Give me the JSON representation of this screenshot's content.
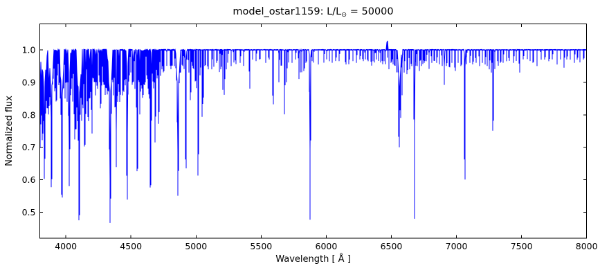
{
  "figure": {
    "title_prefix": "model_ostar1159: L/L",
    "title_sub": "⊙",
    "title_suffix": " = 50000",
    "xlabel": "Wavelength [ Å ]",
    "ylabel": "Normalized flux"
  },
  "chart_data": {
    "type": "line",
    "title": "model_ostar1159: L/L⊙ = 50000",
    "xlabel": "Wavelength [ Å ]",
    "ylabel": "Normalized flux",
    "xlim": [
      3800,
      8000
    ],
    "ylim": [
      0.42,
      1.08
    ],
    "xticks": [
      4000,
      4500,
      5000,
      5500,
      6000,
      6500,
      7000,
      7500,
      8000
    ],
    "yticks": [
      0.5,
      0.6,
      0.7,
      0.8,
      0.9,
      1.0
    ],
    "grid": false,
    "legend": false,
    "line_color": "#0000ff",
    "frame_color": "#000000",
    "continuum_flux": 1.0,
    "noise_amplitude_blue": 0.006,
    "noise_amplitude_red": 0.0035,
    "profile": "parabolic",
    "absorption_lines": [
      [
        3798,
        0.66,
        6
      ],
      [
        3798,
        0.92,
        16
      ],
      [
        3806,
        0.77,
        3.5
      ],
      [
        3813,
        0.8,
        3.5
      ],
      [
        3820,
        0.72,
        4.5
      ],
      [
        3820,
        0.93,
        11
      ],
      [
        3829,
        0.78,
        3.5
      ],
      [
        3835,
        0.6,
        5.5
      ],
      [
        3835,
        0.89,
        18
      ],
      [
        3843,
        0.8,
        3
      ],
      [
        3850,
        0.84,
        3
      ],
      [
        3856,
        0.82,
        3
      ],
      [
        3863,
        0.82,
        3
      ],
      [
        3868,
        0.8,
        3
      ],
      [
        3872,
        0.85,
        3
      ],
      [
        3880,
        0.83,
        3
      ],
      [
        3889,
        0.575,
        5.5
      ],
      [
        3889,
        0.88,
        20
      ],
      [
        3900,
        0.9,
        3
      ],
      [
        3913,
        0.87,
        3
      ],
      [
        3920,
        0.88,
        3
      ],
      [
        3927,
        0.84,
        3.5
      ],
      [
        3935,
        0.92,
        2.5
      ],
      [
        3945,
        0.89,
        3
      ],
      [
        3955,
        0.85,
        3
      ],
      [
        3964,
        0.8,
        3.5
      ],
      [
        3970,
        0.545,
        5.5
      ],
      [
        3970,
        0.87,
        20
      ],
      [
        3983,
        0.88,
        3
      ],
      [
        3995,
        0.85,
        3
      ],
      [
        4003,
        0.9,
        2.5
      ],
      [
        4009,
        0.84,
        3
      ],
      [
        4017,
        0.9,
        2.5
      ],
      [
        4026,
        0.58,
        5
      ],
      [
        4026,
        0.91,
        13
      ],
      [
        4035,
        0.86,
        3
      ],
      [
        4042,
        0.88,
        3
      ],
      [
        4051,
        0.84,
        3
      ],
      [
        4062,
        0.8,
        3
      ],
      [
        4069,
        0.72,
        3
      ],
      [
        4076,
        0.75,
        3
      ],
      [
        4083,
        0.82,
        3
      ],
      [
        4089,
        0.78,
        3
      ],
      [
        4097,
        0.72,
        3.5
      ],
      [
        4102,
        0.475,
        6
      ],
      [
        4102,
        0.86,
        22
      ],
      [
        4110,
        0.8,
        3
      ],
      [
        4116,
        0.85,
        3
      ],
      [
        4121,
        0.78,
        3
      ],
      [
        4129,
        0.83,
        3
      ],
      [
        4133,
        0.82,
        3
      ],
      [
        4145,
        0.7,
        3.5
      ],
      [
        4153,
        0.8,
        3
      ],
      [
        4163,
        0.84,
        3
      ],
      [
        4172,
        0.78,
        3
      ],
      [
        4180,
        0.85,
        3
      ],
      [
        4186,
        0.85,
        3
      ],
      [
        4190,
        0.87,
        2.5
      ],
      [
        4200,
        0.74,
        4
      ],
      [
        4209,
        0.91,
        2.5
      ],
      [
        4215,
        0.9,
        2.5
      ],
      [
        4222,
        0.9,
        2.5
      ],
      [
        4228,
        0.86,
        3
      ],
      [
        4236,
        0.89,
        3
      ],
      [
        4242,
        0.88,
        3
      ],
      [
        4254,
        0.92,
        2.5
      ],
      [
        4261,
        0.9,
        2.5
      ],
      [
        4267,
        0.82,
        3
      ],
      [
        4276,
        0.89,
        3
      ],
      [
        4285,
        0.9,
        3
      ],
      [
        4294,
        0.89,
        3
      ],
      [
        4303,
        0.86,
        3
      ],
      [
        4310,
        0.88,
        3
      ],
      [
        4317,
        0.86,
        3
      ],
      [
        4326,
        0.87,
        3
      ],
      [
        4340,
        0.465,
        6
      ],
      [
        4340,
        0.86,
        22
      ],
      [
        4349,
        0.8,
        3
      ],
      [
        4359,
        0.9,
        2.5
      ],
      [
        4367,
        0.86,
        3
      ],
      [
        4379,
        0.82,
        3
      ],
      [
        4387,
        0.635,
        4
      ],
      [
        4399,
        0.84,
        3
      ],
      [
        4408,
        0.87,
        3
      ],
      [
        4415,
        0.84,
        3
      ],
      [
        4417,
        0.86,
        2.5
      ],
      [
        4437,
        0.86,
        3
      ],
      [
        4447,
        0.87,
        3
      ],
      [
        4455,
        0.89,
        2.5
      ],
      [
        4462,
        0.91,
        2.5
      ],
      [
        4471,
        0.538,
        5
      ],
      [
        4471,
        0.93,
        12
      ],
      [
        4481,
        0.9,
        2.5
      ],
      [
        4489,
        0.92,
        2.5
      ],
      [
        4498,
        0.93,
        2.5
      ],
      [
        4511,
        0.89,
        2.5
      ],
      [
        4515,
        0.9,
        2.5
      ],
      [
        4520,
        0.9,
        2.5
      ],
      [
        4530,
        0.88,
        3
      ],
      [
        4542,
        0.82,
        3
      ],
      [
        4549,
        0.625,
        4
      ],
      [
        4560,
        0.9,
        2.5
      ],
      [
        4568,
        0.8,
        3
      ],
      [
        4575,
        0.87,
        3
      ],
      [
        4583,
        0.88,
        3
      ],
      [
        4590,
        0.85,
        3
      ],
      [
        4596,
        0.86,
        3
      ],
      [
        4604,
        0.89,
        3
      ],
      [
        4610,
        0.9,
        2.5
      ],
      [
        4620,
        0.92,
        2.5
      ],
      [
        4630,
        0.88,
        3
      ],
      [
        4640,
        0.85,
        3
      ],
      [
        4650,
        0.575,
        4.5
      ],
      [
        4658,
        0.78,
        3
      ],
      [
        4667,
        0.9,
        2.5
      ],
      [
        4676,
        0.88,
        3
      ],
      [
        4686,
        0.715,
        3.5
      ],
      [
        4699,
        0.91,
        2.5
      ],
      [
        4705,
        0.92,
        2.5
      ],
      [
        4713,
        0.77,
        3.5
      ],
      [
        4726,
        0.92,
        2.5
      ],
      [
        4740,
        0.94,
        2.5
      ],
      [
        4751,
        0.93,
        2.5
      ],
      [
        4775,
        0.95,
        2.5
      ],
      [
        4805,
        0.94,
        2.5
      ],
      [
        4815,
        0.95,
        2.5
      ],
      [
        4835,
        0.95,
        2.5
      ],
      [
        4861,
        0.549,
        5.5
      ],
      [
        4861,
        0.88,
        20
      ],
      [
        4880,
        0.93,
        2.5
      ],
      [
        4895,
        0.95,
        2.5
      ],
      [
        4907,
        0.94,
        2.5
      ],
      [
        4922,
        0.634,
        4
      ],
      [
        4922,
        0.96,
        10
      ],
      [
        4944,
        0.93,
        2.5
      ],
      [
        4958,
        0.845,
        2.5
      ],
      [
        4970,
        0.95,
        2.5
      ],
      [
        4980,
        0.94,
        2.5
      ],
      [
        4994,
        0.9,
        2.5
      ],
      [
        5002,
        0.88,
        3
      ],
      [
        5016,
        0.61,
        3.5
      ],
      [
        5032,
        0.92,
        2.5
      ],
      [
        5048,
        0.79,
        3
      ],
      [
        5056,
        0.85,
        3
      ],
      [
        5070,
        0.95,
        2.5
      ],
      [
        5092,
        0.94,
        2.5
      ],
      [
        5122,
        0.94,
        2.5
      ],
      [
        5137,
        0.948,
        2.5
      ],
      [
        5160,
        0.96,
        2.5
      ],
      [
        5180,
        0.93,
        2.5
      ],
      [
        5192,
        0.94,
        2.5
      ],
      [
        5205,
        0.875,
        2.5
      ],
      [
        5218,
        0.86,
        2.5
      ],
      [
        5232,
        0.94,
        2.5
      ],
      [
        5244,
        0.96,
        2.5
      ],
      [
        5269,
        0.95,
        2.5
      ],
      [
        5290,
        0.96,
        2.5
      ],
      [
        5305,
        0.955,
        2.5
      ],
      [
        5340,
        0.96,
        2.5
      ],
      [
        5366,
        0.95,
        2.5
      ],
      [
        5412,
        0.88,
        3
      ],
      [
        5434,
        0.97,
        2.5
      ],
      [
        5462,
        0.965,
        2.5
      ],
      [
        5490,
        0.97,
        2.5
      ],
      [
        5535,
        0.96,
        2.5
      ],
      [
        5560,
        0.97,
        2.5
      ],
      [
        5592,
        0.83,
        3
      ],
      [
        5637,
        0.9,
        3
      ],
      [
        5655,
        0.95,
        2.5
      ],
      [
        5680,
        0.8,
        3
      ],
      [
        5696,
        0.9,
        3
      ],
      [
        5710,
        0.96,
        2.5
      ],
      [
        5737,
        0.96,
        2.5
      ],
      [
        5765,
        0.97,
        2.5
      ],
      [
        5790,
        0.91,
        3
      ],
      [
        5801,
        0.93,
        2.5
      ],
      [
        5812,
        0.93,
        2.5
      ],
      [
        5830,
        0.935,
        2.5
      ],
      [
        5846,
        0.96,
        2.5
      ],
      [
        5876,
        0.477,
        4
      ],
      [
        5876,
        0.94,
        9
      ],
      [
        5890,
        0.965,
        2.5
      ],
      [
        5903,
        0.96,
        2.5
      ],
      [
        5940,
        0.955,
        2.5
      ],
      [
        5983,
        0.96,
        2.5
      ],
      [
        6004,
        0.97,
        2.5
      ],
      [
        6024,
        0.965,
        2.5
      ],
      [
        6046,
        0.96,
        2.5
      ],
      [
        6074,
        0.965,
        2.5
      ],
      [
        6100,
        0.965,
        2.5
      ],
      [
        6150,
        0.955,
        2.5
      ],
      [
        6175,
        0.955,
        2.5
      ],
      [
        6205,
        0.965,
        2.5
      ],
      [
        6233,
        0.96,
        2.5
      ],
      [
        6260,
        0.97,
        2.5
      ],
      [
        6283,
        0.965,
        2.5
      ],
      [
        6300,
        0.97,
        2.5
      ],
      [
        6320,
        0.965,
        2.5
      ],
      [
        6347,
        0.95,
        2.5
      ],
      [
        6360,
        0.965,
        2.5
      ],
      [
        6371,
        0.96,
        2.5
      ],
      [
        6385,
        0.97,
        2.5
      ],
      [
        6402,
        0.965,
        2.5
      ],
      [
        6417,
        0.96,
        2.5
      ],
      [
        6432,
        0.955,
        2.5
      ],
      [
        6445,
        0.965,
        2.5
      ],
      [
        6455,
        0.955,
        2.5
      ],
      [
        6472,
        0.975,
        2
      ],
      [
        6482,
        0.94,
        2.5
      ],
      [
        6500,
        0.96,
        2.5
      ],
      [
        6512,
        0.955,
        2.5
      ],
      [
        6527,
        0.95,
        2.5
      ],
      [
        6540,
        0.93,
        2.5
      ],
      [
        6560,
        0.7,
        5
      ],
      [
        6563,
        0.9,
        18
      ],
      [
        6570,
        0.79,
        3
      ],
      [
        6583,
        0.86,
        3
      ],
      [
        6600,
        0.93,
        2.5
      ],
      [
        6622,
        0.925,
        2.5
      ],
      [
        6640,
        0.94,
        2.5
      ],
      [
        6655,
        0.95,
        2.5
      ],
      [
        6678,
        0.48,
        3.5
      ],
      [
        6678,
        0.95,
        7
      ],
      [
        6690,
        0.95,
        2.5
      ],
      [
        6700,
        0.95,
        2.5
      ],
      [
        6717,
        0.935,
        2.5
      ],
      [
        6730,
        0.95,
        2.5
      ],
      [
        6744,
        0.955,
        2.5
      ],
      [
        6755,
        0.96,
        2.5
      ],
      [
        6770,
        0.965,
        2.5
      ],
      [
        6790,
        0.94,
        2.5
      ],
      [
        6810,
        0.96,
        2.5
      ],
      [
        6830,
        0.965,
        2.5
      ],
      [
        6850,
        0.96,
        2.5
      ],
      [
        6870,
        0.955,
        2.5
      ],
      [
        6890,
        0.95,
        2.5
      ],
      [
        6907,
        0.89,
        3
      ],
      [
        6925,
        0.95,
        2.5
      ],
      [
        6947,
        0.945,
        2.5
      ],
      [
        6965,
        0.96,
        2.5
      ],
      [
        6990,
        0.935,
        2.5
      ],
      [
        7013,
        0.96,
        2.5
      ],
      [
        7037,
        0.95,
        2.5
      ],
      [
        7065,
        0.6,
        4
      ],
      [
        7065,
        0.96,
        7
      ],
      [
        7078,
        0.955,
        2.5
      ],
      [
        7105,
        0.96,
        2.5
      ],
      [
        7127,
        0.955,
        2.5
      ],
      [
        7150,
        0.96,
        2.5
      ],
      [
        7177,
        0.95,
        2.5
      ],
      [
        7200,
        0.96,
        2.5
      ],
      [
        7222,
        0.955,
        2.5
      ],
      [
        7236,
        0.95,
        2.5
      ],
      [
        7254,
        0.94,
        2.5
      ],
      [
        7270,
        0.93,
        2.5
      ],
      [
        7281,
        0.748,
        3.5
      ],
      [
        7295,
        0.94,
        2.5
      ],
      [
        7320,
        0.95,
        2.5
      ],
      [
        7340,
        0.96,
        2.5
      ],
      [
        7360,
        0.96,
        2.5
      ],
      [
        7385,
        0.965,
        2.5
      ],
      [
        7405,
        0.965,
        2.5
      ],
      [
        7440,
        0.96,
        2.5
      ],
      [
        7460,
        0.965,
        2.5
      ],
      [
        7485,
        0.93,
        2.5
      ],
      [
        7515,
        0.97,
        2
      ],
      [
        7545,
        0.97,
        2
      ],
      [
        7567,
        0.965,
        2
      ],
      [
        7590,
        0.96,
        2.5
      ],
      [
        7620,
        0.95,
        2.5
      ],
      [
        7650,
        0.97,
        2
      ],
      [
        7680,
        0.97,
        2
      ],
      [
        7712,
        0.965,
        2
      ],
      [
        7738,
        0.97,
        2
      ],
      [
        7774,
        0.955,
        2.5
      ],
      [
        7800,
        0.97,
        2
      ],
      [
        7828,
        0.945,
        2.5
      ],
      [
        7850,
        0.97,
        2
      ],
      [
        7875,
        0.97,
        2
      ],
      [
        7908,
        0.96,
        2
      ],
      [
        7930,
        0.97,
        2
      ],
      [
        7950,
        0.96,
        2
      ],
      [
        7978,
        0.97,
        2
      ]
    ],
    "emission_lines": [
      [
        6469,
        1.028,
        2.5
      ]
    ]
  }
}
